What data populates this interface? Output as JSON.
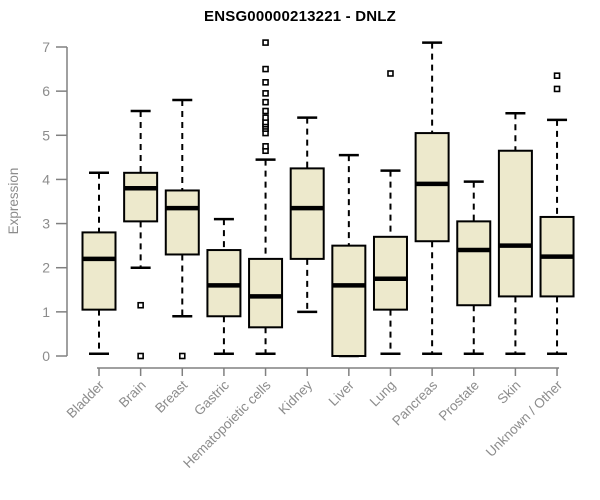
{
  "chart_data": {
    "type": "box",
    "title": "ENSG00000213221 - DNLZ",
    "xlabel": "",
    "ylabel": "Expression",
    "ylim": [
      0,
      7
    ],
    "yticks": [
      0,
      1,
      2,
      3,
      4,
      5,
      6,
      7
    ],
    "grid": false,
    "legend": "none",
    "colors": {
      "box_fill": "#EDE9CC",
      "box_stroke": "#000000",
      "median": "#000000",
      "whisker": "#000000",
      "outlier_stroke": "#000000",
      "axis_line": "#808080",
      "axis_text": "#8C8C8C",
      "title_text": "#000000",
      "background": "#FFFFFF"
    },
    "categories": [
      "Bladder",
      "Brain",
      "Breast",
      "Gastric",
      "Hematopoietic cells",
      "Kidney",
      "Liver",
      "Lung",
      "Pancreas",
      "Prostate",
      "Skin",
      "Unknown / Other"
    ],
    "boxes": [
      {
        "label": "Bladder",
        "whisker_low": 0.05,
        "q1": 1.05,
        "median": 2.2,
        "q3": 2.8,
        "whisker_high": 4.15,
        "outliers": []
      },
      {
        "label": "Brain",
        "whisker_low": 2.0,
        "q1": 3.05,
        "median": 3.8,
        "q3": 4.15,
        "whisker_high": 5.55,
        "outliers": [
          1.15,
          0.0
        ]
      },
      {
        "label": "Breast",
        "whisker_low": 0.9,
        "q1": 2.3,
        "median": 3.35,
        "q3": 3.75,
        "whisker_high": 5.8,
        "outliers": [
          0.0
        ]
      },
      {
        "label": "Gastric",
        "whisker_low": 0.05,
        "q1": 0.9,
        "median": 1.6,
        "q3": 2.4,
        "whisker_high": 3.1,
        "outliers": []
      },
      {
        "label": "Hematopoietic cells",
        "whisker_low": 0.05,
        "q1": 0.65,
        "median": 1.35,
        "q3": 2.2,
        "whisker_high": 4.45,
        "outliers": [
          4.65,
          4.75,
          5.05,
          5.15,
          5.2,
          5.25,
          5.3,
          5.4,
          5.55,
          5.75,
          5.95,
          6.2,
          6.5,
          7.1
        ]
      },
      {
        "label": "Kidney",
        "whisker_low": 1.0,
        "q1": 2.2,
        "median": 3.35,
        "q3": 4.25,
        "whisker_high": 5.4,
        "outliers": []
      },
      {
        "label": "Liver",
        "whisker_low": 0.0,
        "q1": 0.0,
        "median": 1.6,
        "q3": 2.5,
        "whisker_high": 4.55,
        "outliers": []
      },
      {
        "label": "Lung",
        "whisker_low": 0.05,
        "q1": 1.05,
        "median": 1.75,
        "q3": 2.7,
        "whisker_high": 4.2,
        "outliers": [
          6.4
        ]
      },
      {
        "label": "Pancreas",
        "whisker_low": 0.05,
        "q1": 2.6,
        "median": 3.9,
        "q3": 5.05,
        "whisker_high": 7.1,
        "outliers": []
      },
      {
        "label": "Prostate",
        "whisker_low": 0.05,
        "q1": 1.15,
        "median": 2.4,
        "q3": 3.05,
        "whisker_high": 3.95,
        "outliers": []
      },
      {
        "label": "Skin",
        "whisker_low": 0.05,
        "q1": 1.35,
        "median": 2.5,
        "q3": 4.65,
        "whisker_high": 5.5,
        "outliers": []
      },
      {
        "label": "Unknown / Other",
        "whisker_low": 0.05,
        "q1": 1.35,
        "median": 2.25,
        "q3": 3.15,
        "whisker_high": 5.35,
        "outliers": [
          6.05,
          6.35
        ]
      }
    ]
  }
}
